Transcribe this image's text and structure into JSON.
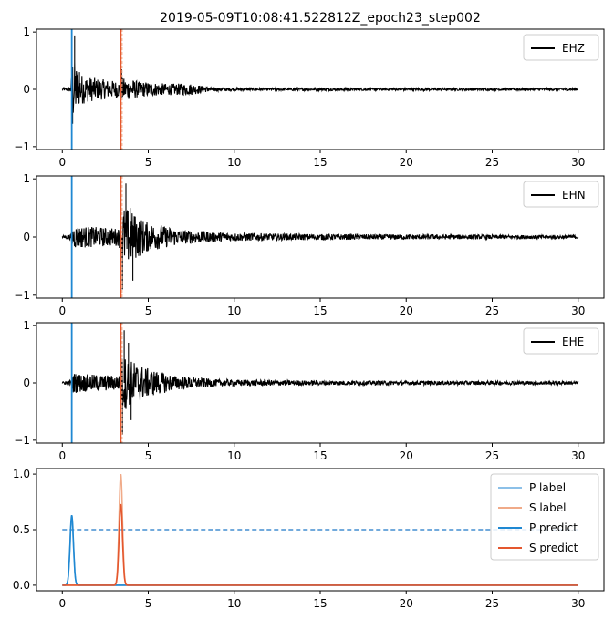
{
  "title": "2019-05-09T10:08:41.522812Z_epoch23_step002",
  "colors": {
    "trace": "#000000",
    "p_pick": "#1f88d2",
    "s_pick": "#e4572e",
    "p_label": "#8cc0e8",
    "s_label": "#f0aa88",
    "threshold": "#1f78c8"
  },
  "chart_data": [
    {
      "type": "line",
      "name": "EHZ",
      "legend": [
        "EHZ"
      ],
      "legend_position": "top-right",
      "xlim": [
        -1.5,
        31.5
      ],
      "ylim": [
        -1.05,
        1.05
      ],
      "xticks": [
        "0",
        "5",
        "10",
        "15",
        "20",
        "25",
        "30"
      ],
      "yticks": [
        "-1",
        "0",
        "1"
      ],
      "p_pick_x": 0.55,
      "s_pick_x": 3.4,
      "envelope": [
        [
          0,
          0.02
        ],
        [
          0.5,
          0.05
        ],
        [
          0.6,
          0.6
        ],
        [
          1.0,
          0.28
        ],
        [
          1.5,
          0.22
        ],
        [
          2.5,
          0.17
        ],
        [
          3.3,
          0.14
        ],
        [
          3.5,
          0.2
        ],
        [
          4.5,
          0.14
        ],
        [
          6.0,
          0.1
        ],
        [
          7.5,
          0.1
        ],
        [
          8.5,
          0.04
        ],
        [
          10,
          0.025
        ],
        [
          30,
          0.02
        ]
      ],
      "spikes": [
        [
          0.72,
          0.94
        ],
        [
          0.6,
          -0.6
        ],
        [
          1.0,
          0.3
        ],
        [
          3.45,
          0.35
        ]
      ]
    },
    {
      "type": "line",
      "name": "EHN",
      "legend": [
        "EHN"
      ],
      "legend_position": "top-right",
      "xlim": [
        -1.5,
        31.5
      ],
      "ylim": [
        -1.05,
        1.05
      ],
      "xticks": [
        "0",
        "5",
        "10",
        "15",
        "20",
        "25",
        "30"
      ],
      "yticks": [
        "-1",
        "0",
        "1"
      ],
      "p_pick_x": 0.55,
      "s_pick_x": 3.4,
      "envelope": [
        [
          0,
          0.02
        ],
        [
          0.5,
          0.05
        ],
        [
          0.6,
          0.2
        ],
        [
          1.5,
          0.18
        ],
        [
          3.3,
          0.15
        ],
        [
          3.5,
          0.55
        ],
        [
          4.2,
          0.4
        ],
        [
          5.0,
          0.25
        ],
        [
          7.0,
          0.12
        ],
        [
          10,
          0.07
        ],
        [
          15,
          0.05
        ],
        [
          30,
          0.03
        ]
      ],
      "spikes": [
        [
          3.5,
          -0.9
        ],
        [
          3.7,
          0.92
        ],
        [
          3.95,
          0.5
        ],
        [
          4.1,
          -0.75
        ]
      ]
    },
    {
      "type": "line",
      "name": "EHE",
      "legend": [
        "EHE"
      ],
      "legend_position": "top-right",
      "xlim": [
        -1.5,
        31.5
      ],
      "ylim": [
        -1.05,
        1.05
      ],
      "xticks": [
        "0",
        "5",
        "10",
        "15",
        "20",
        "25",
        "30"
      ],
      "yticks": [
        "-1",
        "0",
        "1"
      ],
      "p_pick_x": 0.55,
      "s_pick_x": 3.4,
      "envelope": [
        [
          0,
          0.02
        ],
        [
          0.5,
          0.05
        ],
        [
          0.6,
          0.18
        ],
        [
          1.5,
          0.15
        ],
        [
          3.3,
          0.13
        ],
        [
          3.5,
          0.5
        ],
        [
          4.0,
          0.4
        ],
        [
          5.0,
          0.25
        ],
        [
          6.5,
          0.13
        ],
        [
          9,
          0.06
        ],
        [
          15,
          0.04
        ],
        [
          30,
          0.03
        ]
      ],
      "spikes": [
        [
          3.5,
          -0.9
        ],
        [
          3.6,
          0.92
        ],
        [
          3.85,
          0.7
        ],
        [
          4.0,
          -0.65
        ]
      ]
    },
    {
      "type": "line",
      "legend": [
        "P label",
        "S label",
        "P predict",
        "S predict"
      ],
      "legend_position": "top-right",
      "xlim": [
        -1.5,
        31.5
      ],
      "ylim": [
        -0.05,
        1.05
      ],
      "xticks": [
        "0",
        "5",
        "10",
        "15",
        "20",
        "25",
        "30"
      ],
      "yticks": [
        "0.0",
        "0.5",
        "1.0"
      ],
      "threshold": 0.5,
      "series": [
        {
          "name": "P label",
          "center": 0.55,
          "peak": 0.6,
          "width": 0.1
        },
        {
          "name": "S label",
          "center": 3.4,
          "peak": 1.0,
          "width": 0.1
        },
        {
          "name": "P predict",
          "center": 0.55,
          "peak": 0.63,
          "width": 0.1
        },
        {
          "name": "S predict",
          "center": 3.4,
          "peak": 0.73,
          "width": 0.1
        }
      ]
    }
  ]
}
